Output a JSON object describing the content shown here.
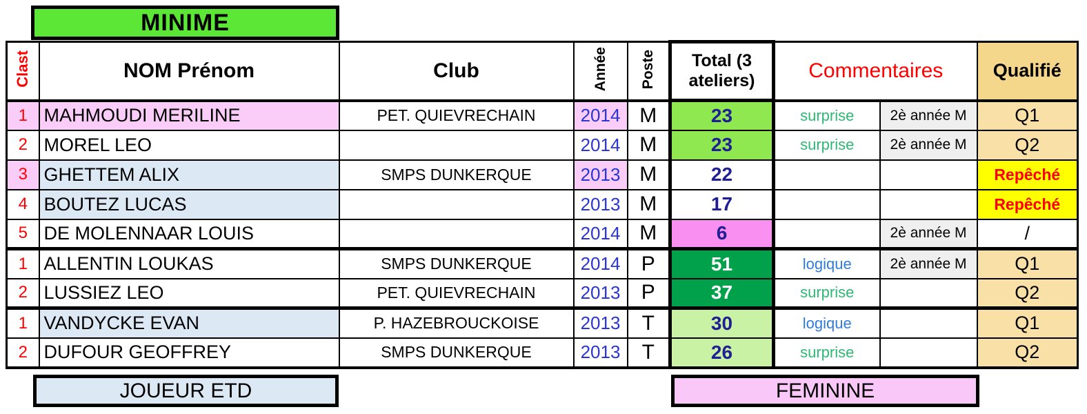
{
  "title": "MINIME",
  "table": {
    "headers": {
      "clast": "Clast",
      "name": "NOM Prénom",
      "club": "Club",
      "year": "Année",
      "poste": "Poste",
      "total": "Total (3 ateliers)",
      "comments": "Commentaires",
      "qualified": "Qualifié"
    },
    "rows": [
      {
        "clast": "1",
        "name": "MAHMOUDI MERILINE",
        "club": "PET. QUIEVRECHAIN",
        "year": "2014",
        "poste": "M",
        "total": "23",
        "comment": "surprise",
        "note": "2è année M",
        "qualified": "Q1",
        "clast_bg": "pink",
        "name_bg": "pink",
        "year_bg": "pink",
        "total_style": "green",
        "comment_style": "c-green",
        "qualified_style": "tan",
        "group_start": false
      },
      {
        "clast": "2",
        "name": "MOREL LEO",
        "club": "",
        "year": "2014",
        "poste": "M",
        "total": "23",
        "comment": "surprise",
        "note": "2è année M",
        "qualified": "Q2",
        "clast_bg": "white",
        "name_bg": "white",
        "year_bg": "white",
        "total_style": "green",
        "comment_style": "c-green",
        "qualified_style": "tan",
        "group_start": false
      },
      {
        "clast": "3",
        "name": "GHETTEM ALIX",
        "club": "SMPS DUNKERQUE",
        "year": "2013",
        "poste": "M",
        "total": "22",
        "comment": "",
        "note": "",
        "qualified": "Repêché",
        "clast_bg": "pink",
        "name_bg": "blue",
        "year_bg": "pink",
        "total_style": "white",
        "comment_style": "",
        "qualified_style": "yellow",
        "group_start": false
      },
      {
        "clast": "4",
        "name": "BOUTEZ LUCAS",
        "club": "",
        "year": "2013",
        "poste": "M",
        "total": "17",
        "comment": "",
        "note": "",
        "qualified": "Repêché",
        "clast_bg": "white",
        "name_bg": "blue",
        "year_bg": "white",
        "total_style": "white",
        "comment_style": "",
        "qualified_style": "yellow",
        "group_start": false
      },
      {
        "clast": "5",
        "name": "DE MOLENNAAR LOUIS",
        "club": "",
        "year": "2014",
        "poste": "M",
        "total": "6",
        "comment": "",
        "note": "2è année M",
        "qualified": "/",
        "clast_bg": "white",
        "name_bg": "white",
        "year_bg": "white",
        "total_style": "pink",
        "comment_style": "",
        "qualified_style": "none",
        "group_start": false
      },
      {
        "clast": "1",
        "name": "ALLENTIN LOUKAS",
        "club": "SMPS DUNKERQUE",
        "year": "2014",
        "poste": "P",
        "total": "51",
        "comment": "logique",
        "note": "2è année M",
        "qualified": "Q1",
        "clast_bg": "white",
        "name_bg": "white",
        "year_bg": "white",
        "total_style": "dark",
        "comment_style": "c-blue",
        "qualified_style": "tan",
        "group_start": true
      },
      {
        "clast": "2",
        "name": "LUSSIEZ LEO",
        "club": "PET. QUIEVRECHAIN",
        "year": "2013",
        "poste": "P",
        "total": "37",
        "comment": "surprise",
        "note": "",
        "qualified": "Q2",
        "clast_bg": "white",
        "name_bg": "white",
        "year_bg": "white",
        "total_style": "dark",
        "comment_style": "c-green",
        "qualified_style": "tan",
        "group_start": false
      },
      {
        "clast": "1",
        "name": "VANDYCKE EVAN",
        "club": "P. HAZEBROUCKOISE",
        "year": "2013",
        "poste": "T",
        "total": "30",
        "comment": "logique",
        "note": "",
        "qualified": "Q1",
        "clast_bg": "white",
        "name_bg": "blue",
        "year_bg": "white",
        "total_style": "light",
        "comment_style": "c-blue",
        "qualified_style": "tan",
        "group_start": true
      },
      {
        "clast": "2",
        "name": "DUFOUR GEOFFREY",
        "club": "SMPS DUNKERQUE",
        "year": "2013",
        "poste": "T",
        "total": "26",
        "comment": "surprise",
        "note": "",
        "qualified": "Q2",
        "clast_bg": "white",
        "name_bg": "white",
        "year_bg": "white",
        "total_style": "light",
        "comment_style": "c-green",
        "qualified_style": "tan",
        "group_start": false
      }
    ]
  },
  "footer": {
    "left_label": "JOUEUR ETD",
    "right_label": "FEMININE"
  },
  "colors": {
    "title_green": "#5CE636",
    "row_pink": "#FACDF8",
    "row_blue": "#DCE8F4",
    "note_gray": "#EFEFEF",
    "total_green": "#8FE84F",
    "total_dark_green": "#00A14A",
    "total_light_green": "#C9F2A4",
    "total_pink": "#FA8FF2",
    "qualified_header_tan": "#F5D78C",
    "qualified_cell_tan": "#F8E0A6",
    "repeche_yellow": "#FFFF00",
    "red_text": "#FF0000",
    "year_blue": "#2A35D4",
    "total_navy": "#1F1F93",
    "surprise_green": "#2DB873",
    "logique_blue": "#2F7BD9",
    "feminine_pink": "#FAC8F8"
  }
}
